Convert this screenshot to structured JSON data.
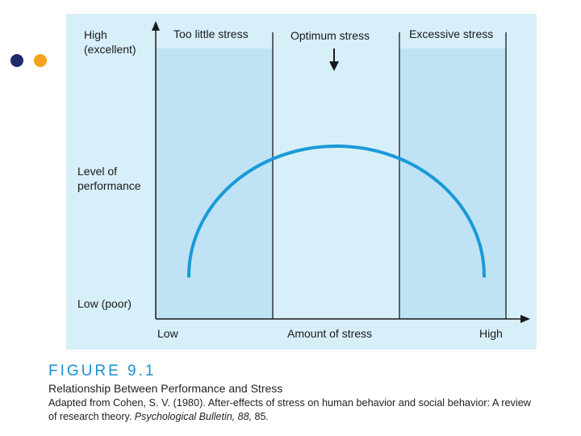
{
  "diagram": {
    "y_axis": {
      "top_label": [
        "High",
        "(excellent)"
      ],
      "middle_label": [
        "Level of",
        "performance"
      ],
      "bottom_label": "Low (poor)"
    },
    "zones": [
      "Too little stress",
      "Optimum stress",
      "Excessive stress"
    ],
    "x_axis": {
      "left_label": "Low",
      "middle_label": "Amount of stress",
      "right_label": "High"
    }
  },
  "caption": {
    "figure": "FIGURE 9.1",
    "title": "Relationship Between Performance and Stress",
    "source_line1": "Adapted from Cohen, S. V. (1980). After-effects of stress on human behavior and social behavior: A review",
    "source_line2_plain": "of research theory.",
    "source_line2_italic": "Psychological Bulletin, 88,",
    "source_line2_end": "85."
  }
}
